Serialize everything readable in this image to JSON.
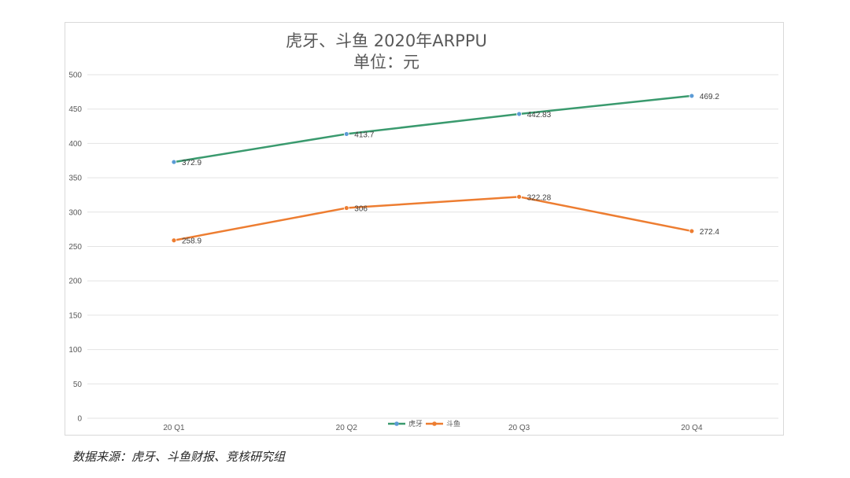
{
  "chart_data": {
    "type": "line",
    "title": "虎牙、斗鱼 2020年ARPPU",
    "subtitle": "单位：元",
    "categories": [
      "20 Q1",
      "20 Q2",
      "20 Q3",
      "20 Q4"
    ],
    "series": [
      {
        "name": "虎牙",
        "values": [
          372.9,
          413.7,
          442.83,
          469.2
        ],
        "labels": [
          "372.9",
          "413.7",
          "442.83",
          "469.2"
        ],
        "color": "#3a9a6e",
        "marker_color": "#5b9bd5"
      },
      {
        "name": "斗鱼",
        "values": [
          258.9,
          306,
          322.28,
          272.4
        ],
        "labels": [
          "258.9",
          "306",
          "322.28",
          "272.4"
        ],
        "color": "#ed7d31",
        "marker_color": "#ed7d31"
      }
    ],
    "ylim": [
      0,
      500
    ],
    "yticks": [
      0,
      50,
      100,
      150,
      200,
      250,
      300,
      350,
      400,
      450,
      500
    ],
    "grid": true,
    "legend_position": "bottom-center"
  },
  "source_note": "数据来源：虎牙、斗鱼财报、竞核研究组"
}
